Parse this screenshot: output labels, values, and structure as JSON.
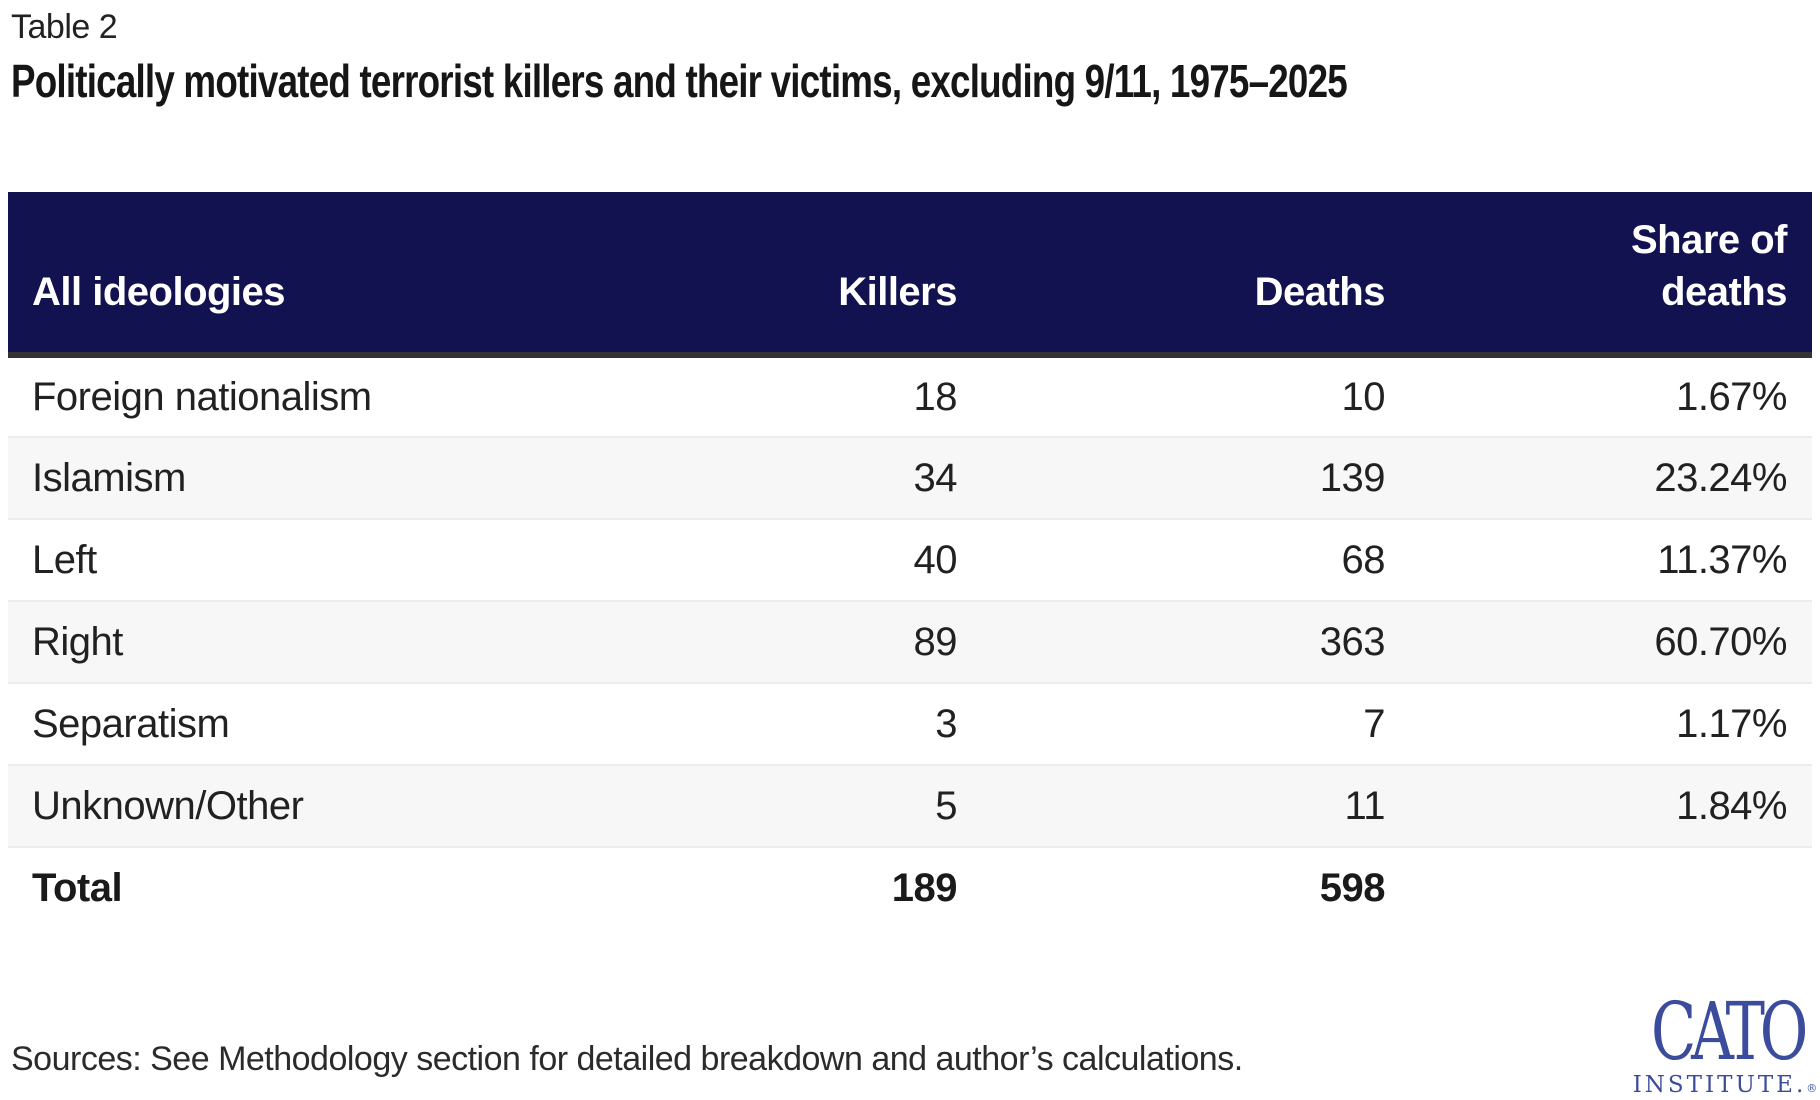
{
  "page": {
    "table_label": "Table 2",
    "title": "Politically motivated terrorist killers and their victims, excluding 9/11, 1975–2025",
    "sources": "Sources: See Methodology section for detailed breakdown and author’s calculations."
  },
  "colors": {
    "header_bg": "#11124f",
    "header_text": "#ffffff",
    "header_bottom_border": "#333333",
    "row_alt_bg": "#f7f7f7",
    "row_divider": "#ececec",
    "body_text": "#212121",
    "logo_blue": "#3c4c9c"
  },
  "logo": {
    "line1": "CATO",
    "line2": "INSTITUTE.",
    "registered": "®"
  },
  "chart_data": {
    "type": "table",
    "title": "Politically motivated terrorist killers and their victims, excluding 9/11, 1975–2025",
    "columns": [
      "All ideologies",
      "Killers",
      "Deaths",
      "Share of deaths"
    ],
    "header": {
      "col_ideology": "All ideologies",
      "col_killers": "Killers",
      "col_deaths": "Deaths",
      "col_share_line1": "Share of",
      "col_share_line2": "deaths"
    },
    "rows": [
      {
        "ideology": "Foreign nationalism",
        "killers": "18",
        "deaths": "10",
        "share": "1.67%"
      },
      {
        "ideology": "Islamism",
        "killers": "34",
        "deaths": "139",
        "share": "23.24%"
      },
      {
        "ideology": "Left",
        "killers": "40",
        "deaths": "68",
        "share": "11.37%"
      },
      {
        "ideology": "Right",
        "killers": "89",
        "deaths": "363",
        "share": "60.70%"
      },
      {
        "ideology": "Separatism",
        "killers": "3",
        "deaths": "7",
        "share": "1.17%"
      },
      {
        "ideology": "Unknown/Other",
        "killers": "5",
        "deaths": "11",
        "share": "1.84%"
      }
    ],
    "total": {
      "ideology": "Total",
      "killers": "189",
      "deaths": "598",
      "share": ""
    }
  }
}
